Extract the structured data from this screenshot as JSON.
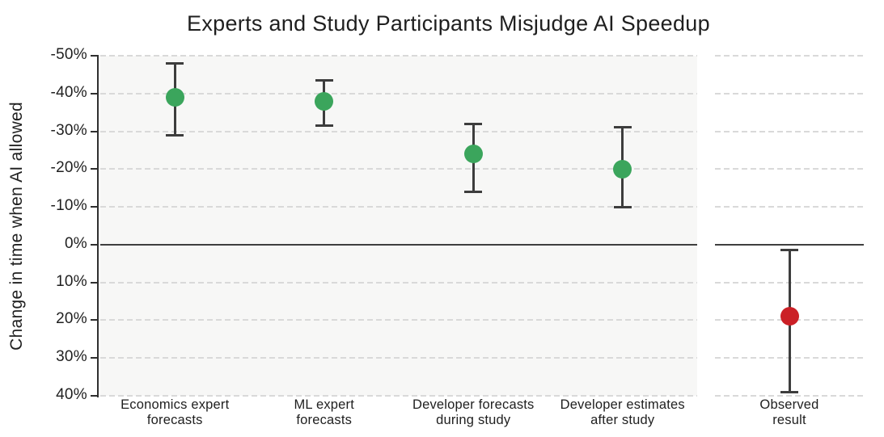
{
  "chart_data": {
    "type": "scatter",
    "subtype": "point-estimates-with-error-bars",
    "title": "Experts and Study Participants Misjudge AI Speedup",
    "ylabel": "Change in time when AI allowed",
    "xlabel": "",
    "legend": "none",
    "grid": "horizontal-dashed",
    "y_axis": {
      "min": -50,
      "max": 40,
      "step": 10,
      "inverted": true,
      "tick_values": [
        -50,
        -40,
        -30,
        -20,
        -10,
        0,
        10,
        20,
        30,
        40
      ],
      "tick_labels": [
        "-50%",
        "-40%",
        "-30%",
        "-20%",
        "-10%",
        "0%",
        "10%",
        "20%",
        "30%",
        "40%"
      ],
      "zero_baseline": 0
    },
    "categories": [
      "Economics expert\nforecasts",
      "ML expert\nforecasts",
      "Developer forecasts\nduring study",
      "Developer estimates\nafter study",
      "Observed\nresult"
    ],
    "points": [
      {
        "category": "Economics expert\nforecasts",
        "value": -39,
        "ci_low": -48,
        "ci_high": -29,
        "color": "#3ba55c",
        "panel": "main"
      },
      {
        "category": "ML expert\nforecasts",
        "value": -38,
        "ci_low": -43.5,
        "ci_high": -31.5,
        "color": "#3ba55c",
        "panel": "main"
      },
      {
        "category": "Developer forecasts\nduring study",
        "value": -24,
        "ci_low": -32,
        "ci_high": -14,
        "color": "#3ba55c",
        "panel": "main"
      },
      {
        "category": "Developer estimates\nafter study",
        "value": -20,
        "ci_low": -31,
        "ci_high": -10,
        "color": "#3ba55c",
        "panel": "main"
      },
      {
        "category": "Observed\nresult",
        "value": 19,
        "ci_low": 1.5,
        "ci_high": 39,
        "color": "#cb2026",
        "panel": "right"
      }
    ],
    "colors": {
      "forecast_green": "#3ba55c",
      "observed_red": "#cb2026",
      "errorbar": "#3d3d3d",
      "zero_line": "#3f3f3f",
      "gridline": "#d9d9d9",
      "main_panel_bg": "#f7f7f6",
      "right_panel_bg": "#ffffff",
      "axis": "#2f2f2f",
      "text": "#1f1f1f"
    }
  }
}
